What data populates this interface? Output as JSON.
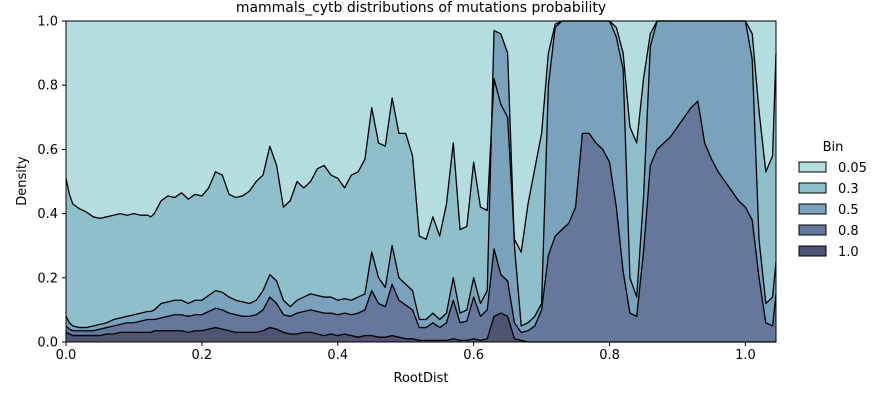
{
  "chart_data": {
    "type": "area",
    "stacking": "fill",
    "title": "mammals_cytb distributions of mutations probability",
    "xlabel": "RootDist",
    "ylabel": "Density",
    "xlim": [
      0.0,
      1.045
    ],
    "ylim": [
      0.0,
      1.0
    ],
    "xticks": [
      "0.0",
      "0.2",
      "0.4",
      "0.6",
      "0.8",
      "1.0"
    ],
    "yticks": [
      "0.0",
      "0.2",
      "0.4",
      "0.6",
      "0.8",
      "1.0"
    ],
    "grid": false,
    "legend": {
      "title": "Bin",
      "placement": "right",
      "entries": [
        "0.05",
        "0.3",
        "0.5",
        "0.8",
        "1.0"
      ]
    },
    "colors": {
      "0.05": "#b4dde0",
      "0.3": "#8ebfcb",
      "0.5": "#7aa2bd",
      "0.8": "#65779a",
      "1.0": "#4e5472"
    },
    "x": [
      0.0,
      0.005,
      0.01,
      0.02,
      0.03,
      0.04,
      0.05,
      0.06,
      0.07,
      0.08,
      0.09,
      0.1,
      0.11,
      0.12,
      0.125,
      0.13,
      0.14,
      0.15,
      0.16,
      0.17,
      0.18,
      0.19,
      0.2,
      0.21,
      0.22,
      0.23,
      0.24,
      0.25,
      0.26,
      0.27,
      0.28,
      0.29,
      0.3,
      0.31,
      0.32,
      0.33,
      0.34,
      0.35,
      0.36,
      0.37,
      0.38,
      0.39,
      0.4,
      0.41,
      0.42,
      0.43,
      0.44,
      0.45,
      0.46,
      0.47,
      0.48,
      0.49,
      0.5,
      0.51,
      0.52,
      0.53,
      0.54,
      0.55,
      0.56,
      0.57,
      0.58,
      0.59,
      0.6,
      0.61,
      0.62,
      0.63,
      0.64,
      0.65,
      0.66,
      0.67,
      0.68,
      0.69,
      0.7,
      0.71,
      0.72,
      0.73,
      0.74,
      0.75,
      0.76,
      0.77,
      0.78,
      0.79,
      0.8,
      0.81,
      0.82,
      0.83,
      0.84,
      0.85,
      0.86,
      0.87,
      0.88,
      0.89,
      0.9,
      0.91,
      0.92,
      0.93,
      0.94,
      0.95,
      0.96,
      0.97,
      0.98,
      0.99,
      1.0,
      1.01,
      1.02,
      1.03,
      1.04,
      1.045
    ],
    "cumulative_boundaries": [
      {
        "between": "0.3 / 0.05",
        "values": [
          0.51,
          0.46,
          0.43,
          0.415,
          0.405,
          0.39,
          0.385,
          0.39,
          0.395,
          0.4,
          0.395,
          0.4,
          0.395,
          0.395,
          0.39,
          0.4,
          0.44,
          0.455,
          0.45,
          0.465,
          0.445,
          0.46,
          0.455,
          0.48,
          0.53,
          0.52,
          0.46,
          0.45,
          0.455,
          0.47,
          0.5,
          0.52,
          0.61,
          0.55,
          0.42,
          0.44,
          0.5,
          0.48,
          0.5,
          0.54,
          0.55,
          0.52,
          0.51,
          0.48,
          0.52,
          0.53,
          0.57,
          0.73,
          0.62,
          0.61,
          0.76,
          0.65,
          0.65,
          0.58,
          0.33,
          0.32,
          0.39,
          0.33,
          0.43,
          0.62,
          0.35,
          0.36,
          0.56,
          0.42,
          0.41,
          0.82,
          0.74,
          0.7,
          0.32,
          0.28,
          0.43,
          0.54,
          0.65,
          0.9,
          0.99,
          1.0,
          1.0,
          1.0,
          1.0,
          1.0,
          1.0,
          1.0,
          1.0,
          0.98,
          0.9,
          0.67,
          0.62,
          0.82,
          0.96,
          1.0,
          1.0,
          1.0,
          1.0,
          1.0,
          1.0,
          1.0,
          1.0,
          1.0,
          1.0,
          1.0,
          1.0,
          1.0,
          1.0,
          0.96,
          0.72,
          0.53,
          0.58,
          0.9
        ]
      },
      {
        "between": "0.5 / 0.3",
        "values": [
          0.08,
          0.06,
          0.05,
          0.045,
          0.045,
          0.05,
          0.055,
          0.06,
          0.07,
          0.075,
          0.08,
          0.085,
          0.09,
          0.095,
          0.095,
          0.1,
          0.12,
          0.125,
          0.13,
          0.13,
          0.12,
          0.13,
          0.13,
          0.145,
          0.16,
          0.155,
          0.14,
          0.13,
          0.125,
          0.12,
          0.13,
          0.16,
          0.21,
          0.19,
          0.13,
          0.11,
          0.13,
          0.14,
          0.15,
          0.145,
          0.14,
          0.14,
          0.13,
          0.135,
          0.13,
          0.14,
          0.15,
          0.28,
          0.2,
          0.17,
          0.3,
          0.2,
          0.18,
          0.16,
          0.07,
          0.07,
          0.09,
          0.07,
          0.09,
          0.2,
          0.09,
          0.1,
          0.2,
          0.12,
          0.16,
          0.97,
          0.96,
          0.9,
          0.3,
          0.05,
          0.06,
          0.08,
          0.12,
          0.8,
          0.98,
          1.0,
          1.0,
          1.0,
          1.0,
          1.0,
          1.0,
          1.0,
          1.0,
          0.95,
          0.85,
          0.2,
          0.14,
          0.45,
          0.92,
          1.0,
          1.0,
          1.0,
          1.0,
          1.0,
          1.0,
          1.0,
          1.0,
          1.0,
          1.0,
          1.0,
          1.0,
          1.0,
          1.0,
          0.88,
          0.32,
          0.12,
          0.14,
          0.25
        ]
      },
      {
        "between": "0.8 / 0.5",
        "values": [
          0.05,
          0.04,
          0.035,
          0.035,
          0.035,
          0.035,
          0.04,
          0.045,
          0.05,
          0.055,
          0.06,
          0.06,
          0.065,
          0.07,
          0.07,
          0.07,
          0.075,
          0.08,
          0.085,
          0.085,
          0.08,
          0.085,
          0.085,
          0.095,
          0.105,
          0.1,
          0.09,
          0.085,
          0.08,
          0.08,
          0.085,
          0.1,
          0.14,
          0.12,
          0.085,
          0.08,
          0.09,
          0.095,
          0.1,
          0.095,
          0.09,
          0.09,
          0.085,
          0.09,
          0.085,
          0.09,
          0.1,
          0.16,
          0.12,
          0.11,
          0.18,
          0.13,
          0.115,
          0.1,
          0.045,
          0.045,
          0.06,
          0.045,
          0.06,
          0.13,
          0.06,
          0.065,
          0.14,
          0.08,
          0.1,
          0.29,
          0.21,
          0.19,
          0.06,
          0.03,
          0.035,
          0.05,
          0.1,
          0.27,
          0.33,
          0.35,
          0.37,
          0.42,
          0.65,
          0.65,
          0.62,
          0.6,
          0.56,
          0.42,
          0.22,
          0.09,
          0.08,
          0.28,
          0.55,
          0.6,
          0.62,
          0.64,
          0.67,
          0.7,
          0.73,
          0.75,
          0.62,
          0.57,
          0.53,
          0.5,
          0.47,
          0.44,
          0.42,
          0.38,
          0.2,
          0.06,
          0.05,
          0.15
        ]
      },
      {
        "between": "1.0 / 0.8",
        "values": [
          0.03,
          0.025,
          0.02,
          0.02,
          0.02,
          0.02,
          0.02,
          0.025,
          0.025,
          0.03,
          0.03,
          0.03,
          0.03,
          0.03,
          0.03,
          0.035,
          0.035,
          0.035,
          0.035,
          0.035,
          0.03,
          0.035,
          0.035,
          0.04,
          0.045,
          0.04,
          0.035,
          0.03,
          0.03,
          0.03,
          0.03,
          0.035,
          0.045,
          0.04,
          0.03,
          0.025,
          0.025,
          0.03,
          0.03,
          0.025,
          0.02,
          0.025,
          0.02,
          0.025,
          0.02,
          0.015,
          0.02,
          0.02,
          0.015,
          0.015,
          0.02,
          0.015,
          0.01,
          0.01,
          0.005,
          0.005,
          0.005,
          0.005,
          0.005,
          0.01,
          0.005,
          0.005,
          0.01,
          0.005,
          0.01,
          0.08,
          0.09,
          0.08,
          0.01,
          0.005,
          0.0,
          0.0,
          0.0,
          0.0,
          0.0,
          0.0,
          0.0,
          0.0,
          0.0,
          0.0,
          0.0,
          0.0,
          0.0,
          0.0,
          0.0,
          0.0,
          0.0,
          0.0,
          0.0,
          0.0,
          0.0,
          0.0,
          0.0,
          0.0,
          0.0,
          0.0,
          0.0,
          0.0,
          0.0,
          0.0,
          0.0,
          0.0,
          0.0,
          0.0,
          0.0,
          0.0,
          0.0,
          0.0
        ]
      }
    ]
  }
}
